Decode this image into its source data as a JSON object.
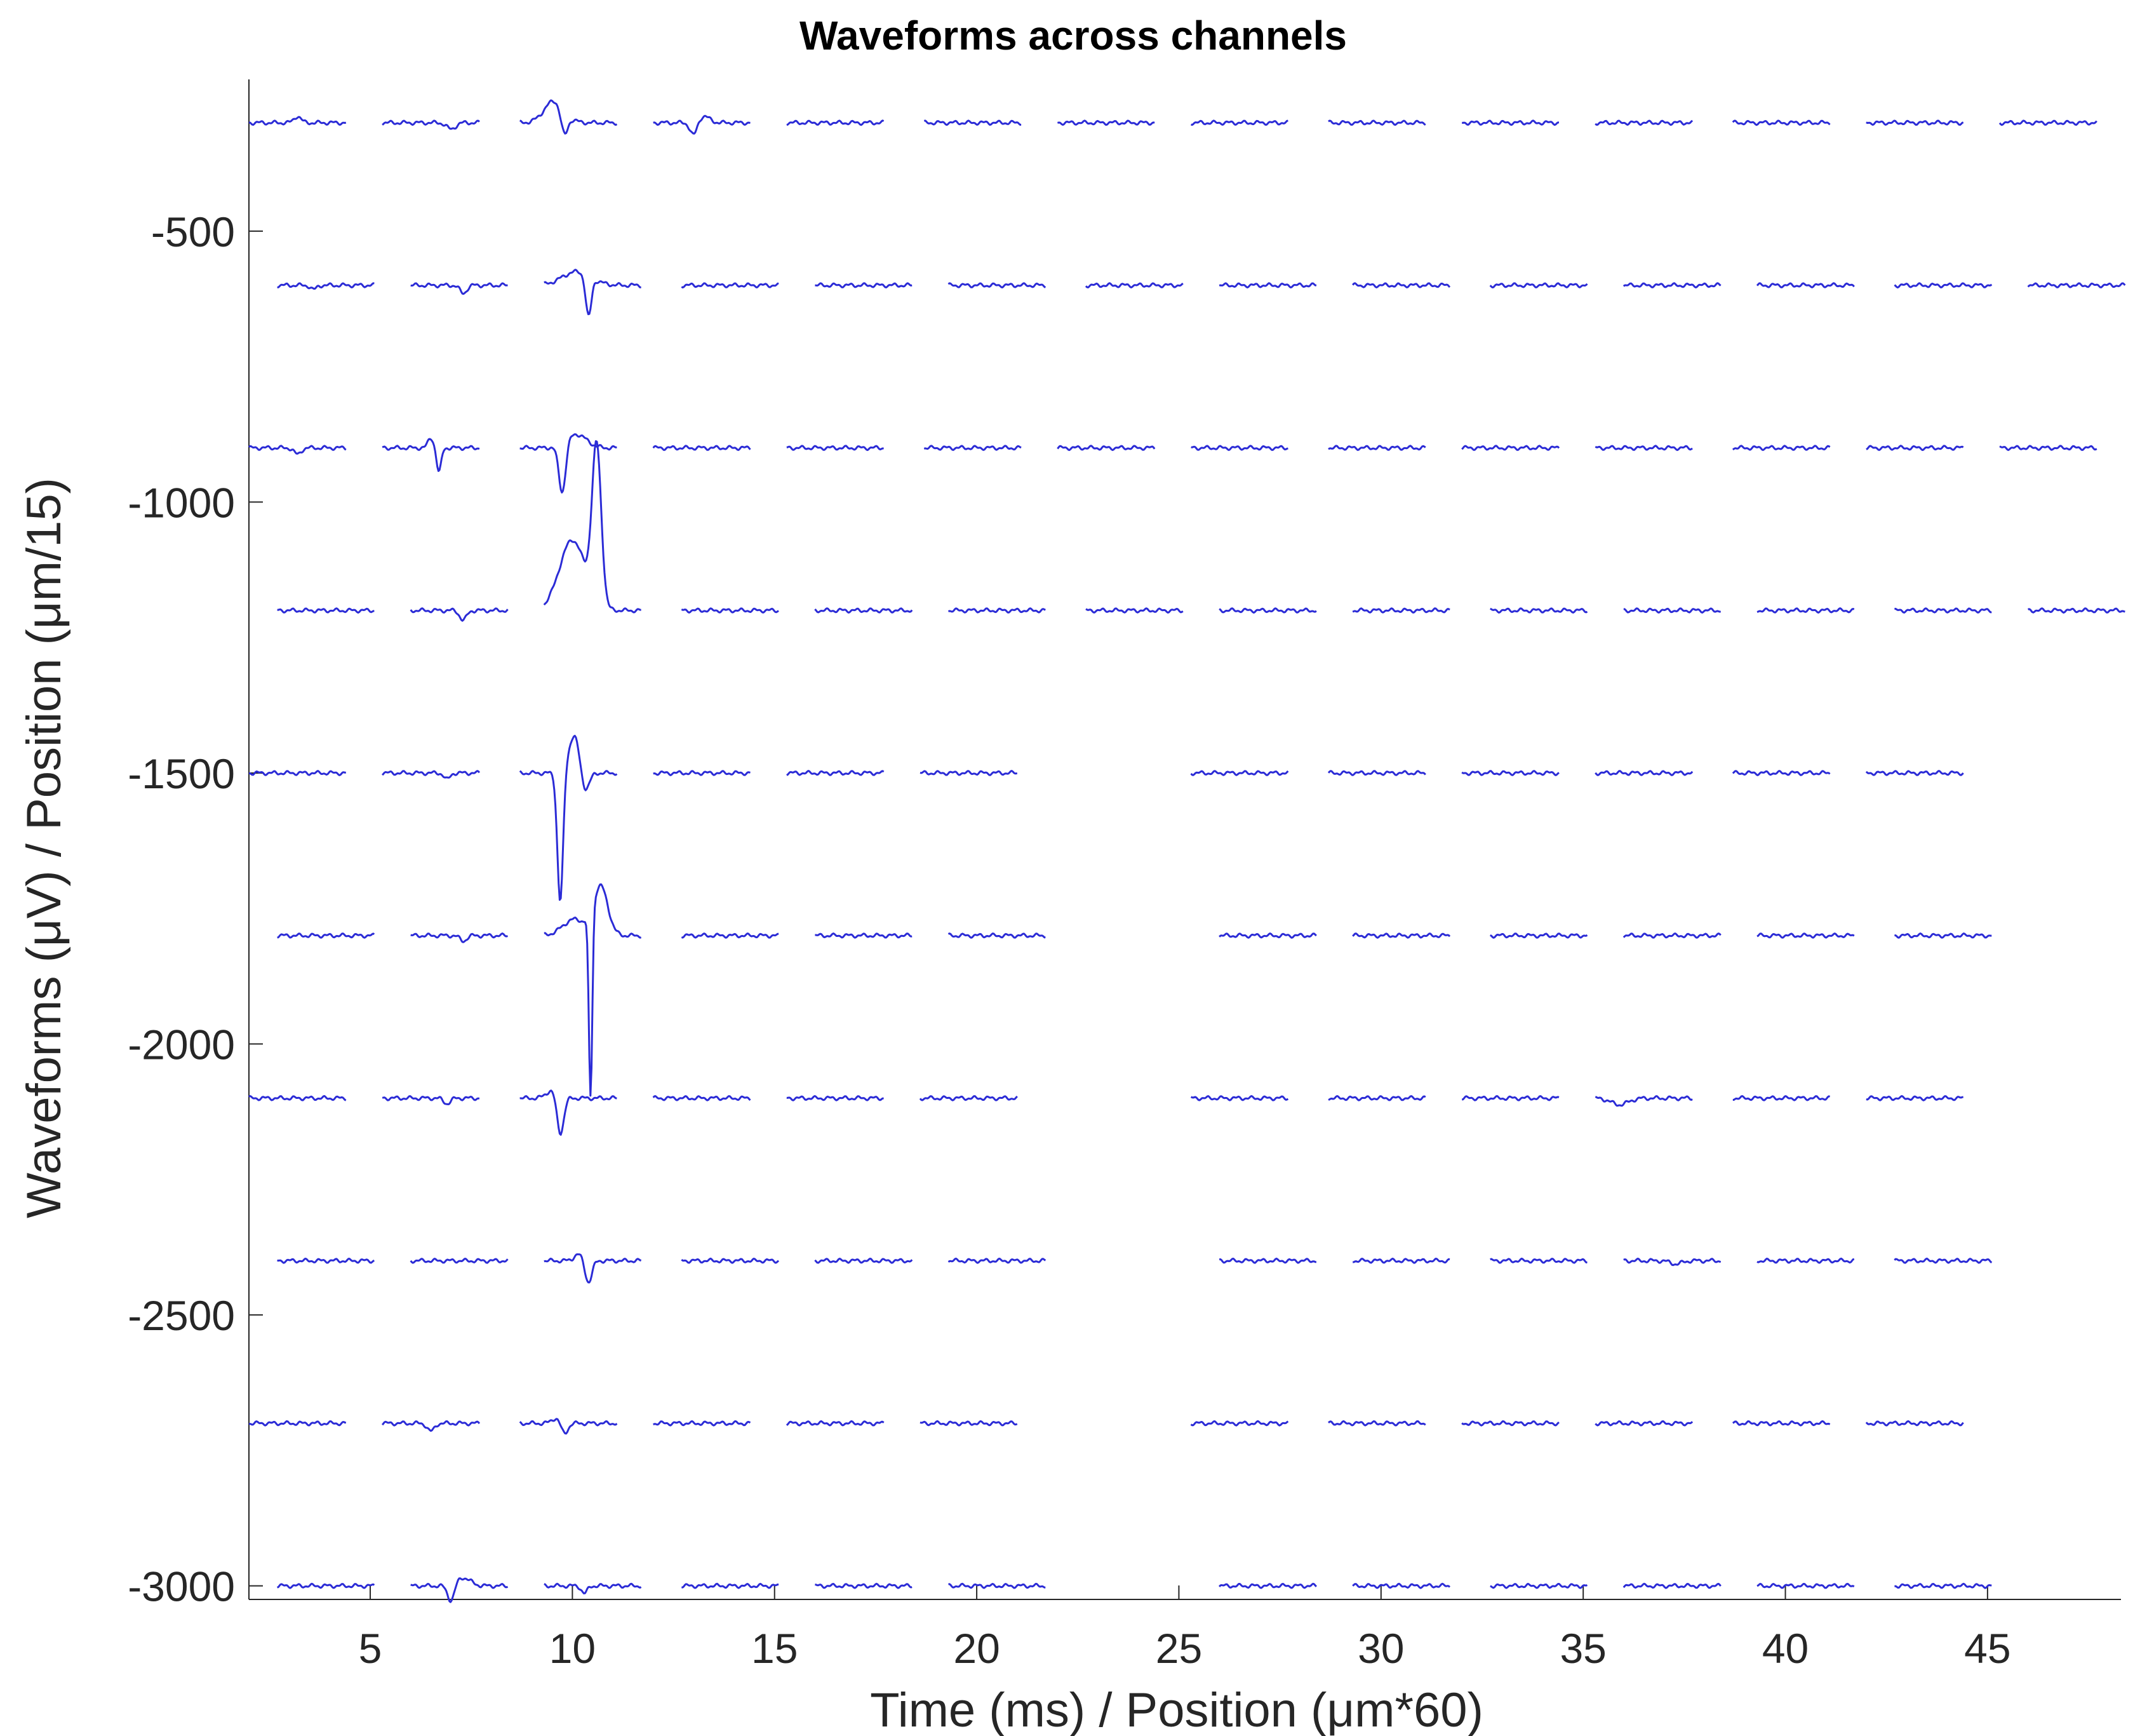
{
  "chart_data": {
    "type": "line",
    "title": "Waveforms across channels",
    "xlabel": "Time (ms) / Position (μm*60)",
    "ylabel": "Waveforms (μV) / Position (μm/15)",
    "xlim": [
      2.0,
      48.3
    ],
    "ylim": [
      -3025,
      -220
    ],
    "xticks": [
      5,
      10,
      15,
      20,
      25,
      30,
      35,
      40,
      45
    ],
    "xtick_labels": [
      "5",
      "10",
      "15",
      "20",
      "25",
      "30",
      "35",
      "40",
      "45"
    ],
    "yticks": [
      -500,
      -1000,
      -1500,
      -2000,
      -2500,
      -3000
    ],
    "ytick_labels": [
      "-500",
      "-1000",
      "-1500",
      "-2000",
      "-2500",
      "-3000"
    ],
    "grid": false,
    "line_color": "#2b2bd6",
    "segment_width_ms": 2.4,
    "rows": [
      {
        "baseline": -300,
        "starts": [
          2.0,
          5.3,
          8.7,
          12.0,
          15.3,
          18.7,
          22.0,
          25.3,
          28.7,
          32.0,
          35.3,
          38.7,
          42.0,
          45.3
        ]
      },
      {
        "baseline": -600,
        "starts": [
          2.7,
          6.0,
          9.3,
          12.7,
          16.0,
          19.3,
          22.7,
          26.0,
          29.3,
          32.7,
          36.0,
          39.3,
          42.7,
          46.0
        ]
      },
      {
        "baseline": -900,
        "starts": [
          2.0,
          5.3,
          8.7,
          12.0,
          15.3,
          18.7,
          22.0,
          25.3,
          28.7,
          32.0,
          35.3,
          38.7,
          42.0,
          45.3
        ]
      },
      {
        "baseline": -1200,
        "starts": [
          2.7,
          6.0,
          9.3,
          12.7,
          16.0,
          19.3,
          22.7,
          26.0,
          29.3,
          32.7,
          36.0,
          39.3,
          42.7,
          46.0
        ]
      },
      {
        "baseline": -1500,
        "starts": [
          2.0,
          5.3,
          8.7,
          12.0,
          15.3,
          18.6,
          25.3,
          28.7,
          32.0,
          35.3,
          38.7,
          42.0
        ]
      },
      {
        "baseline": -1800,
        "starts": [
          2.7,
          6.0,
          9.3,
          12.7,
          16.0,
          19.3,
          26.0,
          29.3,
          32.7,
          36.0,
          39.3,
          42.7
        ]
      },
      {
        "baseline": -2100,
        "starts": [
          2.0,
          5.3,
          8.7,
          12.0,
          15.3,
          18.6,
          25.3,
          28.7,
          32.0,
          35.3,
          38.7,
          42.0
        ]
      },
      {
        "baseline": -2400,
        "starts": [
          2.7,
          6.0,
          9.3,
          12.7,
          16.0,
          19.3,
          26.0,
          29.3,
          32.7,
          36.0,
          39.3,
          42.7
        ]
      },
      {
        "baseline": -2700,
        "starts": [
          2.0,
          5.3,
          8.7,
          12.0,
          15.3,
          18.6,
          25.3,
          28.7,
          32.0,
          35.3,
          38.7,
          42.0
        ]
      },
      {
        "baseline": -3000,
        "starts": [
          2.7,
          6.0,
          9.3,
          12.7,
          16.0,
          19.3,
          26.0,
          29.3,
          32.7,
          36.0,
          39.3,
          42.7
        ]
      }
    ],
    "events": [
      {
        "row": 0,
        "seg": 0,
        "t": 3.2,
        "amp": 12,
        "w": 0.12
      },
      {
        "row": 0,
        "seg": 1,
        "t": 7.0,
        "amp": -12,
        "w": 0.15
      },
      {
        "row": 0,
        "seg": 2,
        "t": 9.55,
        "amp": 40,
        "w": 0.35
      },
      {
        "row": 0,
        "seg": 2,
        "t": 9.8,
        "amp": -45,
        "w": 0.12
      },
      {
        "row": 0,
        "seg": 3,
        "t": 13.0,
        "amp": -25,
        "w": 0.12
      },
      {
        "row": 0,
        "seg": 3,
        "t": 13.25,
        "amp": 12,
        "w": 0.2
      },
      {
        "row": 1,
        "seg": 0,
        "t": 3.6,
        "amp": -8,
        "w": 0.1
      },
      {
        "row": 1,
        "seg": 1,
        "t": 7.3,
        "amp": -15,
        "w": 0.12
      },
      {
        "row": 1,
        "seg": 2,
        "t": 10.1,
        "amp": 25,
        "w": 0.5
      },
      {
        "row": 1,
        "seg": 2,
        "t": 10.4,
        "amp": -75,
        "w": 0.1
      },
      {
        "row": 2,
        "seg": 0,
        "t": 3.2,
        "amp": -12,
        "w": 0.12
      },
      {
        "row": 2,
        "seg": 1,
        "t": 6.7,
        "amp": -45,
        "w": 0.08
      },
      {
        "row": 2,
        "seg": 1,
        "t": 6.5,
        "amp": 18,
        "w": 0.1
      },
      {
        "row": 2,
        "seg": 2,
        "t": 9.75,
        "amp": -90,
        "w": 0.12
      },
      {
        "row": 2,
        "seg": 2,
        "t": 10.1,
        "amp": 25,
        "w": 0.35
      },
      {
        "row": 3,
        "seg": 1,
        "t": 7.3,
        "amp": -18,
        "w": 0.12
      },
      {
        "row": 3,
        "seg": 2,
        "t": 10.0,
        "amp": 130,
        "w": 0.45
      },
      {
        "row": 3,
        "seg": 2,
        "t": 10.6,
        "amp": 290,
        "w": 0.16
      },
      {
        "row": 4,
        "seg": 1,
        "t": 6.9,
        "amp": -12,
        "w": 0.1
      },
      {
        "row": 4,
        "seg": 2,
        "t": 9.7,
        "amp": -240,
        "w": 0.1
      },
      {
        "row": 4,
        "seg": 2,
        "t": 10.05,
        "amp": 70,
        "w": 0.2
      },
      {
        "row": 4,
        "seg": 2,
        "t": 10.3,
        "amp": -40,
        "w": 0.15
      },
      {
        "row": 5,
        "seg": 1,
        "t": 7.3,
        "amp": -10,
        "w": 0.12
      },
      {
        "row": 5,
        "seg": 2,
        "t": 10.05,
        "amp": 30,
        "w": 0.4
      },
      {
        "row": 5,
        "seg": 2,
        "t": 10.7,
        "amp": 90,
        "w": 0.25
      },
      {
        "row": 5,
        "seg": 2,
        "t": 10.45,
        "amp": -340,
        "w": 0.06
      },
      {
        "row": 6,
        "seg": 1,
        "t": 6.9,
        "amp": -10,
        "w": 0.12
      },
      {
        "row": 6,
        "seg": 2,
        "t": 9.7,
        "amp": -70,
        "w": 0.12
      },
      {
        "row": 6,
        "seg": 2,
        "t": 9.5,
        "amp": 15,
        "w": 0.2
      },
      {
        "row": 6,
        "seg": 9,
        "t": 35.9,
        "amp": -12,
        "w": 0.3
      },
      {
        "row": 7,
        "seg": 2,
        "t": 10.4,
        "amp": -40,
        "w": 0.12
      },
      {
        "row": 7,
        "seg": 2,
        "t": 10.15,
        "amp": 12,
        "w": 0.15
      },
      {
        "row": 7,
        "seg": 9,
        "t": 37.3,
        "amp": -6,
        "w": 0.2
      },
      {
        "row": 8,
        "seg": 1,
        "t": 6.5,
        "amp": -15,
        "w": 0.12
      },
      {
        "row": 8,
        "seg": 2,
        "t": 9.8,
        "amp": -20,
        "w": 0.12
      },
      {
        "row": 8,
        "seg": 2,
        "t": 9.6,
        "amp": 10,
        "w": 0.15
      },
      {
        "row": 9,
        "seg": 1,
        "t": 7.0,
        "amp": -30,
        "w": 0.12
      },
      {
        "row": 9,
        "seg": 1,
        "t": 7.3,
        "amp": 15,
        "w": 0.25
      },
      {
        "row": 9,
        "seg": 2,
        "t": 10.3,
        "amp": -14,
        "w": 0.1
      }
    ]
  }
}
